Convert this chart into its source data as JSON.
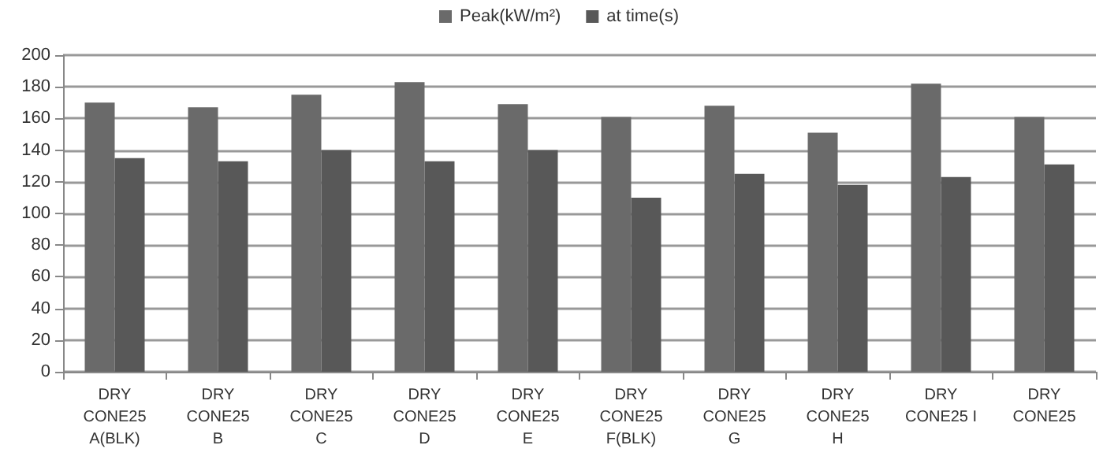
{
  "chart_data": {
    "type": "bar",
    "categories": [
      "DRY\nCONE25\nA(BLK)",
      "DRY\nCONE25\nB",
      "DRY\nCONE25\nC",
      "DRY\nCONE25\nD",
      "DRY\nCONE25\nE",
      "DRY\nCONE25\nF(BLK)",
      "DRY\nCONE25\nG",
      "DRY\nCONE25\nH",
      "DRY\nCONE25 I",
      "DRY\nCONE25"
    ],
    "series": [
      {
        "name": "Peak(kW/m²)",
        "color": "#6a6a6a",
        "values": [
          170,
          167,
          175,
          183,
          169,
          161,
          168,
          151,
          182,
          161
        ]
      },
      {
        "name": "at time(s)",
        "color": "#585858",
        "values": [
          135,
          133,
          140,
          133,
          140,
          110,
          125,
          118,
          123,
          131
        ]
      }
    ],
    "ylim": [
      0,
      200
    ],
    "yticks": [
      0,
      20,
      40,
      60,
      80,
      100,
      120,
      140,
      160,
      180,
      200
    ],
    "grid": "y",
    "legend": "top"
  }
}
